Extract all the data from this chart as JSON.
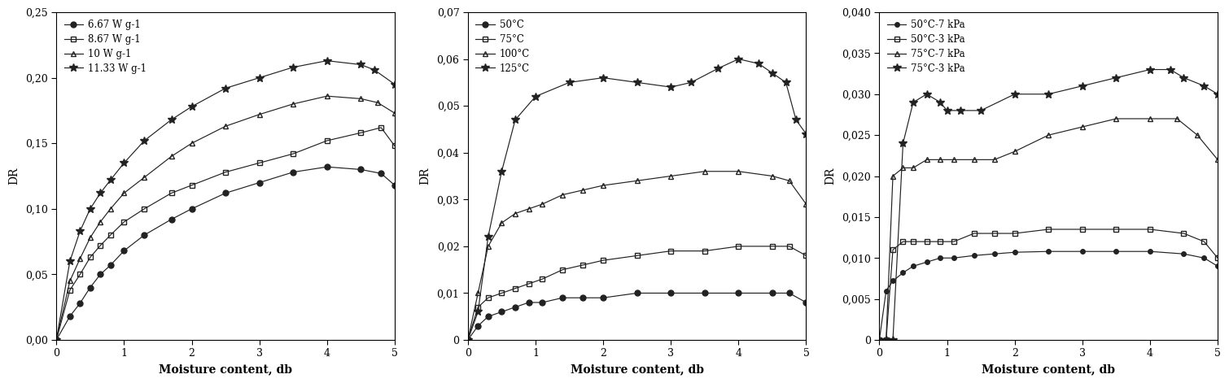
{
  "chart1": {
    "ylabel": "DR",
    "xlabel": "Moisture content, db",
    "ylim": [
      0,
      0.25
    ],
    "xlim": [
      0,
      5
    ],
    "yticks": [
      0.0,
      0.05,
      0.1,
      0.15,
      0.2,
      0.25
    ],
    "ytick_labels": [
      "0,00",
      "0,05",
      "0,10",
      "0,15",
      "0,20",
      "0,25"
    ],
    "xticks": [
      0,
      1,
      2,
      3,
      4,
      5
    ],
    "series": [
      {
        "label": "6.67 W g-1",
        "marker": "o",
        "markersize": 5,
        "fillstyle": "full",
        "color": "#222222",
        "x": [
          0.0,
          0.2,
          0.35,
          0.5,
          0.65,
          0.8,
          1.0,
          1.3,
          1.7,
          2.0,
          2.5,
          3.0,
          3.5,
          4.0,
          4.5,
          4.8,
          5.0
        ],
        "y": [
          0.0,
          0.018,
          0.028,
          0.04,
          0.05,
          0.057,
          0.068,
          0.08,
          0.092,
          0.1,
          0.112,
          0.12,
          0.128,
          0.132,
          0.13,
          0.127,
          0.118
        ]
      },
      {
        "label": "8.67 W g-1",
        "marker": "s",
        "markersize": 5,
        "fillstyle": "none",
        "color": "#222222",
        "x": [
          0.0,
          0.2,
          0.35,
          0.5,
          0.65,
          0.8,
          1.0,
          1.3,
          1.7,
          2.0,
          2.5,
          3.0,
          3.5,
          4.0,
          4.5,
          4.8,
          5.0
        ],
        "y": [
          0.0,
          0.038,
          0.05,
          0.063,
          0.072,
          0.08,
          0.09,
          0.1,
          0.112,
          0.118,
          0.128,
          0.135,
          0.142,
          0.152,
          0.158,
          0.162,
          0.148
        ]
      },
      {
        "label": "10 W g-1",
        "marker": "^",
        "markersize": 5,
        "fillstyle": "none",
        "color": "#222222",
        "x": [
          0.0,
          0.2,
          0.35,
          0.5,
          0.65,
          0.8,
          1.0,
          1.3,
          1.7,
          2.0,
          2.5,
          3.0,
          3.5,
          4.0,
          4.5,
          4.75,
          5.0
        ],
        "y": [
          0.0,
          0.045,
          0.062,
          0.078,
          0.09,
          0.1,
          0.112,
          0.124,
          0.14,
          0.15,
          0.163,
          0.172,
          0.18,
          0.186,
          0.184,
          0.181,
          0.173
        ]
      },
      {
        "label": "11.33 W g-1",
        "marker": "*",
        "markersize": 7,
        "fillstyle": "full",
        "color": "#222222",
        "x": [
          0.0,
          0.2,
          0.35,
          0.5,
          0.65,
          0.8,
          1.0,
          1.3,
          1.7,
          2.0,
          2.5,
          3.0,
          3.5,
          4.0,
          4.5,
          4.7,
          5.0
        ],
        "y": [
          0.0,
          0.06,
          0.083,
          0.1,
          0.112,
          0.122,
          0.135,
          0.152,
          0.168,
          0.178,
          0.192,
          0.2,
          0.208,
          0.213,
          0.21,
          0.206,
          0.195
        ]
      }
    ]
  },
  "chart2": {
    "ylabel": "DR",
    "xlabel": "Moisture content, db",
    "ylim": [
      0,
      0.07
    ],
    "xlim": [
      0,
      5
    ],
    "yticks": [
      0,
      0.01,
      0.02,
      0.03,
      0.04,
      0.05,
      0.06,
      0.07
    ],
    "ytick_labels": [
      "0",
      "0,01",
      "0,02",
      "0,03",
      "0,04",
      "0,05",
      "0,06",
      "0,07"
    ],
    "xticks": [
      0,
      1,
      2,
      3,
      4,
      5
    ],
    "series": [
      {
        "label": "50°C",
        "marker": "o",
        "markersize": 5,
        "fillstyle": "full",
        "color": "#222222",
        "x": [
          0.0,
          0.15,
          0.3,
          0.5,
          0.7,
          0.9,
          1.1,
          1.4,
          1.7,
          2.0,
          2.5,
          3.0,
          3.5,
          4.0,
          4.5,
          4.75,
          5.0
        ],
        "y": [
          0.0,
          0.003,
          0.005,
          0.006,
          0.007,
          0.008,
          0.008,
          0.009,
          0.009,
          0.009,
          0.01,
          0.01,
          0.01,
          0.01,
          0.01,
          0.01,
          0.008
        ]
      },
      {
        "label": "75°C",
        "marker": "s",
        "markersize": 5,
        "fillstyle": "none",
        "color": "#222222",
        "x": [
          0.0,
          0.15,
          0.3,
          0.5,
          0.7,
          0.9,
          1.1,
          1.4,
          1.7,
          2.0,
          2.5,
          3.0,
          3.5,
          4.0,
          4.5,
          4.75,
          5.0
        ],
        "y": [
          0.0,
          0.007,
          0.009,
          0.01,
          0.011,
          0.012,
          0.013,
          0.015,
          0.016,
          0.017,
          0.018,
          0.019,
          0.019,
          0.02,
          0.02,
          0.02,
          0.018
        ]
      },
      {
        "label": "100°C",
        "marker": "^",
        "markersize": 5,
        "fillstyle": "none",
        "color": "#222222",
        "x": [
          0.0,
          0.15,
          0.3,
          0.5,
          0.7,
          0.9,
          1.1,
          1.4,
          1.7,
          2.0,
          2.5,
          3.0,
          3.5,
          4.0,
          4.5,
          4.75,
          5.0
        ],
        "y": [
          0.0,
          0.01,
          0.02,
          0.025,
          0.027,
          0.028,
          0.029,
          0.031,
          0.032,
          0.033,
          0.034,
          0.035,
          0.036,
          0.036,
          0.035,
          0.034,
          0.029
        ]
      },
      {
        "label": "125°C",
        "marker": "*",
        "markersize": 7,
        "fillstyle": "full",
        "color": "#222222",
        "x": [
          0.0,
          0.15,
          0.3,
          0.5,
          0.7,
          1.0,
          1.5,
          2.0,
          2.5,
          3.0,
          3.3,
          3.7,
          4.0,
          4.3,
          4.5,
          4.7,
          4.85,
          5.0
        ],
        "y": [
          0.0,
          0.006,
          0.022,
          0.036,
          0.047,
          0.052,
          0.055,
          0.056,
          0.055,
          0.054,
          0.055,
          0.058,
          0.06,
          0.059,
          0.057,
          0.055,
          0.047,
          0.044
        ]
      }
    ]
  },
  "chart3": {
    "ylabel": "DR",
    "xlabel": "Moisture content, db",
    "ylim": [
      0,
      0.04
    ],
    "xlim": [
      0,
      5
    ],
    "yticks": [
      0,
      0.005,
      0.01,
      0.015,
      0.02,
      0.025,
      0.03,
      0.035,
      0.04
    ],
    "ytick_labels": [
      "0",
      "0,005",
      "0,010",
      "0,015",
      "0,020",
      "0,025",
      "0,030",
      "0,035",
      "0,040"
    ],
    "xticks": [
      0,
      1,
      2,
      3,
      4,
      5
    ],
    "series": [
      {
        "label": "50°C-7 kPa",
        "marker": "o",
        "markersize": 4,
        "fillstyle": "full",
        "color": "#222222",
        "x": [
          0.0,
          0.1,
          0.2,
          0.35,
          0.5,
          0.7,
          0.9,
          1.1,
          1.4,
          1.7,
          2.0,
          2.5,
          3.0,
          3.5,
          4.0,
          4.5,
          4.8,
          5.0
        ],
        "y": [
          0.0,
          0.006,
          0.0072,
          0.0082,
          0.009,
          0.0095,
          0.01,
          0.01,
          0.0103,
          0.0105,
          0.0107,
          0.0108,
          0.0108,
          0.0108,
          0.0108,
          0.0105,
          0.01,
          0.009
        ]
      },
      {
        "label": "50°C-3 kPa",
        "marker": "s",
        "markersize": 4,
        "fillstyle": "none",
        "color": "#222222",
        "x": [
          0.0,
          0.1,
          0.2,
          0.35,
          0.5,
          0.7,
          0.9,
          1.1,
          1.4,
          1.7,
          2.0,
          2.5,
          3.0,
          3.5,
          4.0,
          4.5,
          4.8,
          5.0
        ],
        "y": [
          0.0,
          0.0,
          0.011,
          0.012,
          0.012,
          0.012,
          0.012,
          0.012,
          0.013,
          0.013,
          0.013,
          0.0135,
          0.0135,
          0.0135,
          0.0135,
          0.013,
          0.012,
          0.01
        ]
      },
      {
        "label": "75°C-7 kPa",
        "marker": "^",
        "markersize": 5,
        "fillstyle": "none",
        "color": "#222222",
        "x": [
          0.0,
          0.1,
          0.2,
          0.35,
          0.5,
          0.7,
          0.9,
          1.1,
          1.4,
          1.7,
          2.0,
          2.5,
          3.0,
          3.5,
          4.0,
          4.4,
          4.7,
          5.0
        ],
        "y": [
          0.0,
          0.0,
          0.02,
          0.021,
          0.021,
          0.022,
          0.022,
          0.022,
          0.022,
          0.022,
          0.023,
          0.025,
          0.026,
          0.027,
          0.027,
          0.027,
          0.025,
          0.022
        ]
      },
      {
        "label": "75°C-3 kPa",
        "marker": "*",
        "markersize": 7,
        "fillstyle": "full",
        "color": "#222222",
        "x": [
          0.0,
          0.1,
          0.2,
          0.35,
          0.5,
          0.7,
          0.9,
          1.0,
          1.2,
          1.5,
          2.0,
          2.5,
          3.0,
          3.5,
          4.0,
          4.3,
          4.5,
          4.8,
          5.0
        ],
        "y": [
          0.0,
          0.0,
          0.0,
          0.024,
          0.029,
          0.03,
          0.029,
          0.028,
          0.028,
          0.028,
          0.03,
          0.03,
          0.031,
          0.032,
          0.033,
          0.033,
          0.032,
          0.031,
          0.03
        ]
      }
    ]
  }
}
